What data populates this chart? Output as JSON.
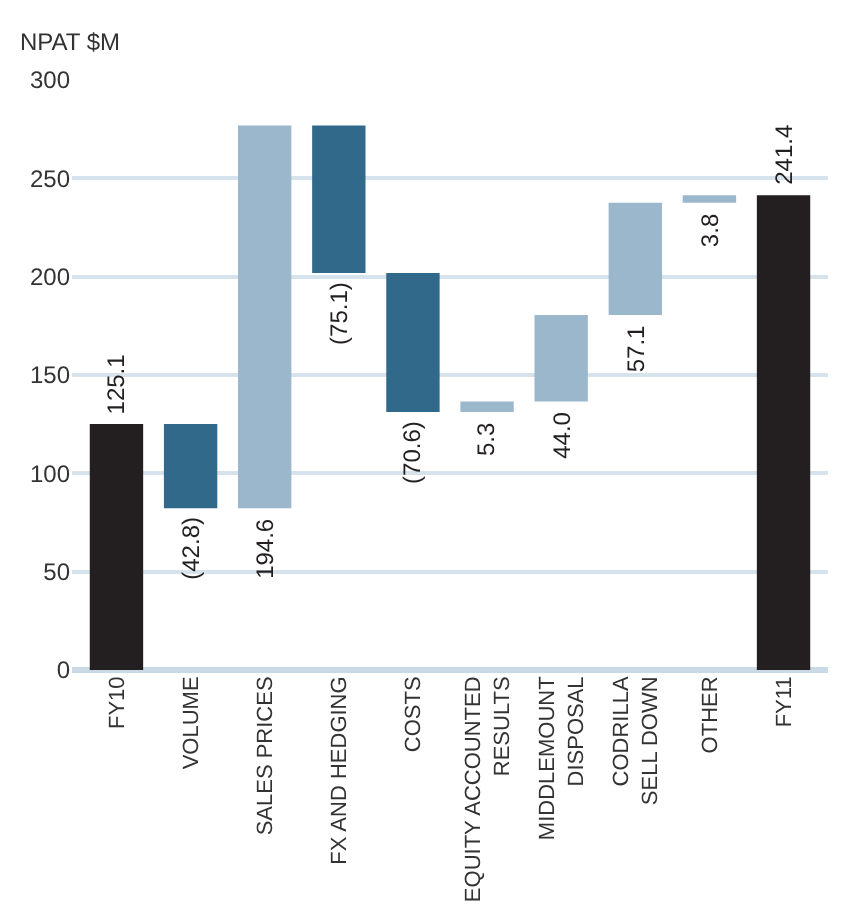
{
  "chart_data": {
    "type": "bar",
    "ylabel": "NPAT $M",
    "categories": [
      "FY10",
      "VOLUME",
      "SALES PRICES",
      "FX AND HEDGING",
      "COSTS",
      "EQUITY ACCOUNTED RESULTS",
      "MIDDLEMOUNT DISPOSAL",
      "CODRILLA SELL DOWN",
      "OTHER",
      "FY11"
    ],
    "values": [
      125.1,
      -42.8,
      194.6,
      -75.1,
      -70.6,
      5.3,
      44.0,
      57.1,
      3.8,
      241.4
    ],
    "base": [
      0,
      125.1,
      82.3,
      276.9,
      201.8,
      131.2,
      136.5,
      180.5,
      237.6,
      0
    ],
    "colors": [
      "#231f20",
      "#31698a",
      "#9bb7cc",
      "#31698a",
      "#31698a",
      "#9bb7cc",
      "#9bb7cc",
      "#9bb7cc",
      "#9bb7cc",
      "#231f20"
    ],
    "value_labels": [
      "125.1",
      "(42.8)",
      "194.6",
      "(75.1)",
      "(70.6)",
      "5.3",
      "44.0",
      "57.1",
      "3.8",
      "241.4"
    ],
    "ylim": [
      0,
      300
    ],
    "yticks": [
      0,
      50,
      100,
      150,
      200,
      250,
      300
    ],
    "grid": "y"
  }
}
